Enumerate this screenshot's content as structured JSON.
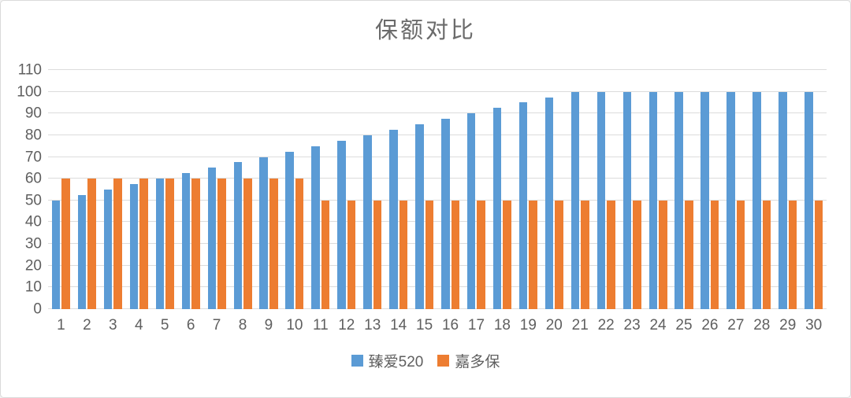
{
  "title": "保额对比",
  "colors": {
    "series_blue": "#5B9BD5",
    "series_orange": "#ED7D31",
    "gridline": "#DCDCDC",
    "axis_text": "#5F5F5F",
    "title_text": "#6B6B6B",
    "frame_border": "#DADADA",
    "background": "#FFFFFF"
  },
  "chart_data": {
    "type": "bar",
    "title": "保额对比",
    "categories": [
      "1",
      "2",
      "3",
      "4",
      "5",
      "6",
      "7",
      "8",
      "9",
      "10",
      "11",
      "12",
      "13",
      "14",
      "15",
      "16",
      "17",
      "18",
      "19",
      "20",
      "21",
      "22",
      "23",
      "24",
      "25",
      "26",
      "27",
      "28",
      "29",
      "30"
    ],
    "series": [
      {
        "name": "臻爱520",
        "color": "#5B9BD5",
        "values": [
          50,
          52.5,
          55,
          57.5,
          60,
          62.5,
          65,
          67.5,
          70,
          72.5,
          75,
          77.5,
          80,
          82.5,
          85,
          87.5,
          90,
          92.5,
          95,
          97.5,
          100,
          100,
          100,
          100,
          100,
          100,
          100,
          100,
          100,
          100
        ]
      },
      {
        "name": "嘉多保",
        "color": "#ED7D31",
        "values": [
          60,
          60,
          60,
          60,
          60,
          60,
          60,
          60,
          60,
          60,
          50,
          50,
          50,
          50,
          50,
          50,
          50,
          50,
          50,
          50,
          50,
          50,
          50,
          50,
          50,
          50,
          50,
          50,
          50,
          50
        ]
      }
    ],
    "xlabel": "",
    "ylabel": "",
    "ylim": [
      0,
      110
    ],
    "yticks": [
      0,
      10,
      20,
      30,
      40,
      50,
      60,
      70,
      80,
      90,
      100,
      110
    ],
    "grid": true,
    "legend_position": "bottom"
  },
  "legend": {
    "items": [
      {
        "label": "臻爱520"
      },
      {
        "label": "嘉多保"
      }
    ]
  }
}
